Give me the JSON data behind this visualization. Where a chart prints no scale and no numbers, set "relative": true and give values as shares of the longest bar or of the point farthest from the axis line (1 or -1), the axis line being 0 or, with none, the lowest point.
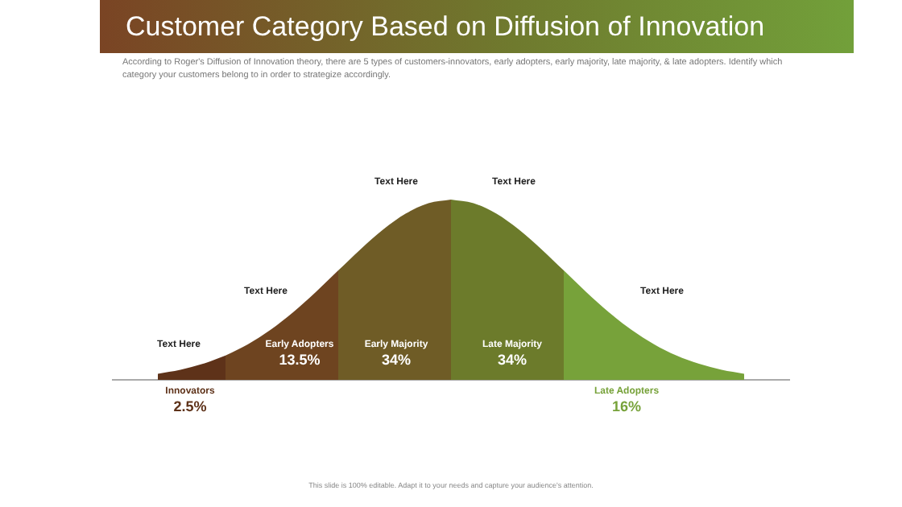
{
  "chart_data": {
    "type": "area",
    "title": "Customer Category Based on Diffusion of Innovation",
    "subtitle": "According to Roger's Diffusion of Innovation theory, there are 5 types of customers-innovators, early adopters, early majority, late majority, & late adopters. Identify which category your customers belong to in order to strategize accordingly.",
    "relative": true,
    "legend": false,
    "grid": false,
    "categories": [
      null,
      null,
      null,
      null,
      null,
      null,
      null,
      null,
      null,
      null,
      null,
      null,
      null,
      null,
      null,
      null,
      null,
      null,
      null,
      null,
      null,
      null,
      null,
      null,
      null,
      null,
      null,
      null,
      null,
      null,
      null
    ],
    "series": [
      {
        "name": "Innovators",
        "color": "#5e3219",
        "values": [
          null,
          null,
          0.034,
          0.056,
          0.089,
          0.135,
          null,
          null,
          null,
          null,
          null,
          null,
          null,
          null,
          null,
          null,
          null,
          null,
          null,
          null,
          null,
          null,
          null,
          null,
          null,
          null,
          null,
          null,
          null,
          null,
          null
        ]
      },
      {
        "name": "Early Adopters",
        "color": "#6e4420",
        "values": [
          null,
          null,
          null,
          null,
          null,
          0.135,
          0.198,
          0.278,
          0.375,
          0.487,
          0.607,
          null,
          null,
          null,
          null,
          null,
          null,
          null,
          null,
          null,
          null,
          null,
          null,
          null,
          null,
          null,
          null,
          null,
          null,
          null,
          null
        ]
      },
      {
        "name": "Early Majority",
        "color": "#6f5c26",
        "values": [
          null,
          null,
          null,
          null,
          null,
          null,
          null,
          null,
          null,
          null,
          0.607,
          0.726,
          0.835,
          0.923,
          0.98,
          1,
          null,
          null,
          null,
          null,
          null,
          null,
          null,
          null,
          null,
          null,
          null,
          null,
          null,
          null,
          null
        ]
      },
      {
        "name": "Late Majority",
        "color": "#6c7b2b",
        "values": [
          null,
          null,
          null,
          null,
          null,
          null,
          null,
          null,
          null,
          null,
          null,
          null,
          null,
          null,
          null,
          1,
          0.98,
          0.923,
          0.835,
          0.726,
          0.607,
          null,
          null,
          null,
          null,
          null,
          null,
          null,
          null,
          null,
          null
        ]
      },
      {
        "name": "Late Adopters",
        "color": "#77a23a",
        "values": [
          null,
          null,
          null,
          null,
          null,
          null,
          null,
          null,
          null,
          null,
          null,
          null,
          null,
          null,
          null,
          null,
          null,
          null,
          null,
          null,
          0.607,
          0.487,
          0.375,
          0.278,
          0.198,
          0.135,
          0.089,
          0.056,
          0.034,
          null,
          null
        ]
      }
    ],
    "annotations": [
      "Text Here",
      "Text Here",
      "Text Here",
      "Text Here",
      "Text Here",
      "2.5%",
      "13.5%",
      "34%",
      "34%",
      "16%",
      "This slide is 100% editable. Adapt it to your needs and capture your audience's attention."
    ]
  }
}
